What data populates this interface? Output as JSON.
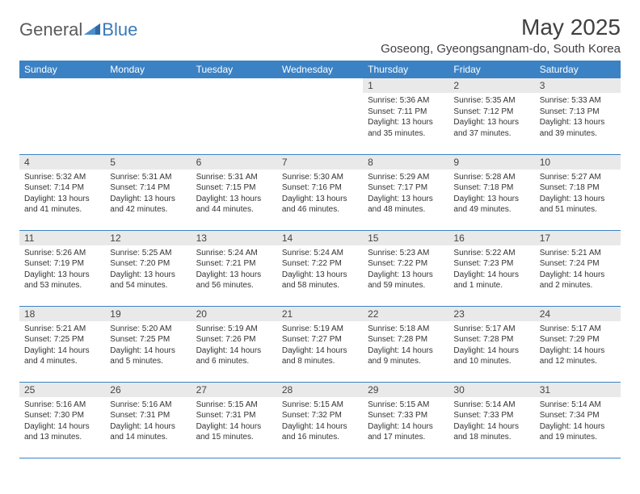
{
  "logo": {
    "word1": "General",
    "word2": "Blue"
  },
  "title": "May 2025",
  "location": "Goseong, Gyeongsangnam-do, South Korea",
  "colors": {
    "header_bg": "#3b82c4",
    "header_text": "#ffffff",
    "daynum_bg": "#e9e9e9",
    "border": "#3b82c4",
    "title_text": "#404040",
    "logo_gray": "#5a5a5a",
    "logo_blue": "#3a7ab8"
  },
  "day_headers": [
    "Sunday",
    "Monday",
    "Tuesday",
    "Wednesday",
    "Thursday",
    "Friday",
    "Saturday"
  ],
  "weeks": [
    [
      {
        "n": "",
        "sr": "",
        "ss": "",
        "dl": ""
      },
      {
        "n": "",
        "sr": "",
        "ss": "",
        "dl": ""
      },
      {
        "n": "",
        "sr": "",
        "ss": "",
        "dl": ""
      },
      {
        "n": "",
        "sr": "",
        "ss": "",
        "dl": ""
      },
      {
        "n": "1",
        "sr": "Sunrise: 5:36 AM",
        "ss": "Sunset: 7:11 PM",
        "dl": "Daylight: 13 hours and 35 minutes."
      },
      {
        "n": "2",
        "sr": "Sunrise: 5:35 AM",
        "ss": "Sunset: 7:12 PM",
        "dl": "Daylight: 13 hours and 37 minutes."
      },
      {
        "n": "3",
        "sr": "Sunrise: 5:33 AM",
        "ss": "Sunset: 7:13 PM",
        "dl": "Daylight: 13 hours and 39 minutes."
      }
    ],
    [
      {
        "n": "4",
        "sr": "Sunrise: 5:32 AM",
        "ss": "Sunset: 7:14 PM",
        "dl": "Daylight: 13 hours and 41 minutes."
      },
      {
        "n": "5",
        "sr": "Sunrise: 5:31 AM",
        "ss": "Sunset: 7:14 PM",
        "dl": "Daylight: 13 hours and 42 minutes."
      },
      {
        "n": "6",
        "sr": "Sunrise: 5:31 AM",
        "ss": "Sunset: 7:15 PM",
        "dl": "Daylight: 13 hours and 44 minutes."
      },
      {
        "n": "7",
        "sr": "Sunrise: 5:30 AM",
        "ss": "Sunset: 7:16 PM",
        "dl": "Daylight: 13 hours and 46 minutes."
      },
      {
        "n": "8",
        "sr": "Sunrise: 5:29 AM",
        "ss": "Sunset: 7:17 PM",
        "dl": "Daylight: 13 hours and 48 minutes."
      },
      {
        "n": "9",
        "sr": "Sunrise: 5:28 AM",
        "ss": "Sunset: 7:18 PM",
        "dl": "Daylight: 13 hours and 49 minutes."
      },
      {
        "n": "10",
        "sr": "Sunrise: 5:27 AM",
        "ss": "Sunset: 7:18 PM",
        "dl": "Daylight: 13 hours and 51 minutes."
      }
    ],
    [
      {
        "n": "11",
        "sr": "Sunrise: 5:26 AM",
        "ss": "Sunset: 7:19 PM",
        "dl": "Daylight: 13 hours and 53 minutes."
      },
      {
        "n": "12",
        "sr": "Sunrise: 5:25 AM",
        "ss": "Sunset: 7:20 PM",
        "dl": "Daylight: 13 hours and 54 minutes."
      },
      {
        "n": "13",
        "sr": "Sunrise: 5:24 AM",
        "ss": "Sunset: 7:21 PM",
        "dl": "Daylight: 13 hours and 56 minutes."
      },
      {
        "n": "14",
        "sr": "Sunrise: 5:24 AM",
        "ss": "Sunset: 7:22 PM",
        "dl": "Daylight: 13 hours and 58 minutes."
      },
      {
        "n": "15",
        "sr": "Sunrise: 5:23 AM",
        "ss": "Sunset: 7:22 PM",
        "dl": "Daylight: 13 hours and 59 minutes."
      },
      {
        "n": "16",
        "sr": "Sunrise: 5:22 AM",
        "ss": "Sunset: 7:23 PM",
        "dl": "Daylight: 14 hours and 1 minute."
      },
      {
        "n": "17",
        "sr": "Sunrise: 5:21 AM",
        "ss": "Sunset: 7:24 PM",
        "dl": "Daylight: 14 hours and 2 minutes."
      }
    ],
    [
      {
        "n": "18",
        "sr": "Sunrise: 5:21 AM",
        "ss": "Sunset: 7:25 PM",
        "dl": "Daylight: 14 hours and 4 minutes."
      },
      {
        "n": "19",
        "sr": "Sunrise: 5:20 AM",
        "ss": "Sunset: 7:25 PM",
        "dl": "Daylight: 14 hours and 5 minutes."
      },
      {
        "n": "20",
        "sr": "Sunrise: 5:19 AM",
        "ss": "Sunset: 7:26 PM",
        "dl": "Daylight: 14 hours and 6 minutes."
      },
      {
        "n": "21",
        "sr": "Sunrise: 5:19 AM",
        "ss": "Sunset: 7:27 PM",
        "dl": "Daylight: 14 hours and 8 minutes."
      },
      {
        "n": "22",
        "sr": "Sunrise: 5:18 AM",
        "ss": "Sunset: 7:28 PM",
        "dl": "Daylight: 14 hours and 9 minutes."
      },
      {
        "n": "23",
        "sr": "Sunrise: 5:17 AM",
        "ss": "Sunset: 7:28 PM",
        "dl": "Daylight: 14 hours and 10 minutes."
      },
      {
        "n": "24",
        "sr": "Sunrise: 5:17 AM",
        "ss": "Sunset: 7:29 PM",
        "dl": "Daylight: 14 hours and 12 minutes."
      }
    ],
    [
      {
        "n": "25",
        "sr": "Sunrise: 5:16 AM",
        "ss": "Sunset: 7:30 PM",
        "dl": "Daylight: 14 hours and 13 minutes."
      },
      {
        "n": "26",
        "sr": "Sunrise: 5:16 AM",
        "ss": "Sunset: 7:31 PM",
        "dl": "Daylight: 14 hours and 14 minutes."
      },
      {
        "n": "27",
        "sr": "Sunrise: 5:15 AM",
        "ss": "Sunset: 7:31 PM",
        "dl": "Daylight: 14 hours and 15 minutes."
      },
      {
        "n": "28",
        "sr": "Sunrise: 5:15 AM",
        "ss": "Sunset: 7:32 PM",
        "dl": "Daylight: 14 hours and 16 minutes."
      },
      {
        "n": "29",
        "sr": "Sunrise: 5:15 AM",
        "ss": "Sunset: 7:33 PM",
        "dl": "Daylight: 14 hours and 17 minutes."
      },
      {
        "n": "30",
        "sr": "Sunrise: 5:14 AM",
        "ss": "Sunset: 7:33 PM",
        "dl": "Daylight: 14 hours and 18 minutes."
      },
      {
        "n": "31",
        "sr": "Sunrise: 5:14 AM",
        "ss": "Sunset: 7:34 PM",
        "dl": "Daylight: 14 hours and 19 minutes."
      }
    ]
  ]
}
